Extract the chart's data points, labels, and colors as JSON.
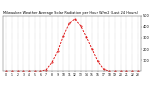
{
  "title": "Milwaukee Weather Average Solar Radiation per Hour W/m2 (Last 24 Hours)",
  "hours": [
    0,
    1,
    2,
    3,
    4,
    5,
    6,
    7,
    8,
    9,
    10,
    11,
    12,
    13,
    14,
    15,
    16,
    17,
    18,
    19,
    20,
    21,
    22,
    23
  ],
  "values": [
    0,
    0,
    0,
    0,
    0,
    0,
    0,
    15,
    80,
    180,
    320,
    430,
    470,
    410,
    310,
    200,
    90,
    20,
    0,
    0,
    0,
    0,
    0,
    0
  ],
  "line_color": "#dd0000",
  "bg_color": "#ffffff",
  "grid_color": "#888888",
  "ylim": [
    0,
    500
  ],
  "yticks": [
    100,
    200,
    300,
    400,
    500
  ],
  "ylabel_fontsize": 2.5,
  "xlabel_fontsize": 2.2,
  "title_fontsize": 2.5
}
